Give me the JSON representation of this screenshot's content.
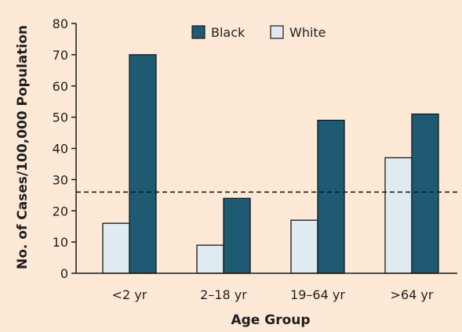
{
  "colors": {
    "background": "#fde9d6",
    "black_series": "#1f5a73",
    "white_series": "#dfeaf1",
    "bar_stroke": "#1a1a1a",
    "axis": "#1a1a1a",
    "reference_line": "#1a1a1a"
  },
  "chart_data": {
    "type": "bar",
    "title": "",
    "xlabel": "Age Group",
    "ylabel": "No. of Cases/100,000 Population",
    "ylim": [
      0,
      80
    ],
    "yticks": [
      "0",
      "10",
      "20",
      "30",
      "40",
      "50",
      "60",
      "70",
      "80"
    ],
    "categories": [
      "<2 yr",
      "2–18 yr",
      "19–64 yr",
      ">64 yr"
    ],
    "series": [
      {
        "name": "White",
        "values": [
          16,
          9,
          17,
          37
        ]
      },
      {
        "name": "Black",
        "values": [
          70,
          24,
          49,
          51
        ]
      }
    ],
    "reference_line": {
      "value": 26,
      "style": "dashed"
    },
    "legend_placement": "top-center",
    "grid": false
  }
}
